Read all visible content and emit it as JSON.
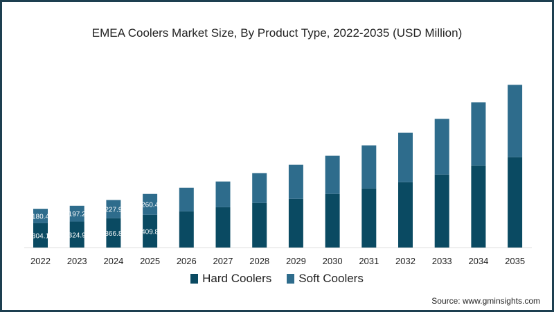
{
  "chart_data": {
    "type": "bar",
    "stacked": true,
    "title": "EMEA Coolers Market Size, By Product Type, 2022-2035 (USD Million)",
    "categories": [
      "2022",
      "2023",
      "2024",
      "2025",
      "2026",
      "2027",
      "2028",
      "2029",
      "2030",
      "2031",
      "2032",
      "2033",
      "2034",
      "2035"
    ],
    "series": [
      {
        "name": "Hard Coolers",
        "color": "#0a4a62",
        "values": [
          304.1,
          324.9,
          366.8,
          409.8,
          452,
          504,
          557,
          609,
          670,
          739,
          817,
          913,
          1026,
          1130
        ],
        "labels": [
          "304.1",
          "324.9",
          "366.8",
          "409.8"
        ]
      },
      {
        "name": "Soft Coolers",
        "color": "#2e6c8c",
        "values": [
          180.4,
          197.2,
          227.9,
          260.4,
          296,
          322,
          373,
          426,
          478,
          539,
          618,
          696,
          791,
          905
        ],
        "labels": [
          "180.4",
          "197.2",
          "227.9",
          "260.4"
        ]
      }
    ],
    "xlabel": "",
    "ylabel": "",
    "ylim": [
      0,
      2100
    ],
    "grid": false,
    "legend": "bottom"
  },
  "source": "Source: www.gminsights.com"
}
